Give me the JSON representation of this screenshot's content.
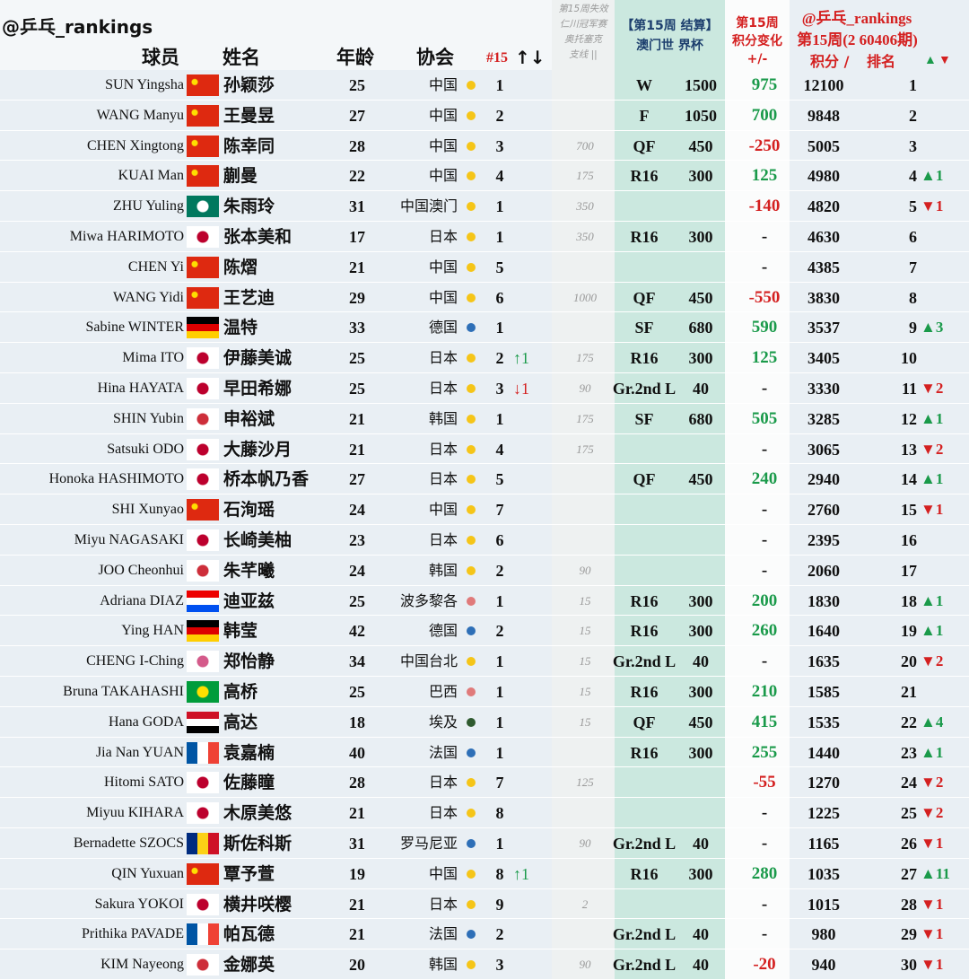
{
  "header": {
    "handle": "@乒乓_rankings",
    "player": "球员",
    "name": "姓名",
    "age": "年龄",
    "assoc": "协会",
    "week": "#15",
    "week_arrows": "↑↓",
    "dropped": [
      "第15周失效",
      "仁川冠军赛",
      "奥托塞克",
      "支线 ||"
    ],
    "event": [
      "【第15周 结算】",
      "澳门世 界杯"
    ],
    "change": [
      "第15周",
      "积分变化",
      "+/-"
    ],
    "handle2": "@乒乓_rankings",
    "points_title": "第15周(2 60406期)",
    "points": "积分 /",
    "rank": "排名",
    "rank_up": "▲",
    "rank_down": "▼"
  },
  "colors": {
    "up": "#1a9a4a",
    "down": "#d42020",
    "dot": {
      "中国": "#f5c518",
      "中国澳门": "#f5c518",
      "日本": "#f5c518",
      "韩国": "#f5c518",
      "中国台北": "#f5c518",
      "德国": "#2e6fb7",
      "法国": "#2e6fb7",
      "罗马尼亚": "#2e6fb7",
      "波多黎各": "#e07a7a",
      "巴西": "#e07a7a",
      "埃及": "#2f5a2f"
    }
  },
  "flags": {
    "中国": {
      "dir": "corner",
      "colors": [
        "#de2910",
        "#ffde00"
      ]
    },
    "中国澳门": {
      "dir": "disc",
      "colors": [
        "#00785e",
        "#ffffff"
      ]
    },
    "日本": {
      "dir": "disc",
      "colors": [
        "#ffffff",
        "#bc002d"
      ]
    },
    "韩国": {
      "dir": "disc",
      "colors": [
        "#ffffff",
        "#cd2e3a"
      ]
    },
    "中国台北": {
      "dir": "disc",
      "colors": [
        "#ffffff",
        "#d45a8a"
      ]
    },
    "德国": {
      "dir": "h",
      "colors": [
        "#000000",
        "#dd0000",
        "#ffce00"
      ]
    },
    "法国": {
      "dir": "v",
      "colors": [
        "#0055a4",
        "#ffffff",
        "#ef4135"
      ]
    },
    "罗马尼亚": {
      "dir": "v",
      "colors": [
        "#002b7f",
        "#fcd116",
        "#ce1126"
      ]
    },
    "波多黎各": {
      "dir": "h",
      "colors": [
        "#ed0000",
        "#ffffff",
        "#0050f0"
      ]
    },
    "巴西": {
      "dir": "disc",
      "colors": [
        "#009c3b",
        "#ffdf00"
      ]
    },
    "埃及": {
      "dir": "h",
      "colors": [
        "#ce1126",
        "#ffffff",
        "#000000"
      ]
    }
  },
  "rows": [
    {
      "en": "SUN Yingsha",
      "zh": "孙颖莎",
      "age": 25,
      "assoc": "中国",
      "rank15": 1,
      "stage": "W",
      "pts": 1500,
      "change": 975,
      "total": 12100,
      "rank": 1
    },
    {
      "en": "WANG Manyu",
      "zh": "王曼昱",
      "age": 27,
      "assoc": "中国",
      "rank15": 2,
      "stage": "F",
      "pts": 1050,
      "change": 700,
      "total": 9848,
      "rank": 2
    },
    {
      "en": "CHEN Xingtong",
      "zh": "陈幸同",
      "age": 28,
      "assoc": "中国",
      "rank15": 3,
      "dropped": 700,
      "stage": "QF",
      "pts": 450,
      "change": -250,
      "total": 5005,
      "rank": 3
    },
    {
      "en": "KUAI Man",
      "zh": "蒯曼",
      "age": 22,
      "assoc": "中国",
      "rank15": 4,
      "dropped": 175,
      "stage": "R16",
      "pts": 300,
      "change": 125,
      "total": 4980,
      "rank": 4,
      "rank_move": "▲1"
    },
    {
      "en": "ZHU Yuling",
      "zh": "朱雨玲",
      "age": 31,
      "assoc": "中国澳门",
      "rank15": 1,
      "dropped": 350,
      "change": -140,
      "total": 4820,
      "rank": 5,
      "rank_move": "▼1"
    },
    {
      "en": "Miwa HARIMOTO",
      "zh": "张本美和",
      "age": 17,
      "assoc": "日本",
      "rank15": 1,
      "dropped": 350,
      "stage": "R16",
      "pts": 300,
      "change": "-",
      "total": 4630,
      "rank": 6
    },
    {
      "en": "CHEN Yi",
      "zh": "陈熠",
      "age": 21,
      "assoc": "中国",
      "rank15": 5,
      "change": "-",
      "total": 4385,
      "rank": 7
    },
    {
      "en": "WANG Yidi",
      "zh": "王艺迪",
      "age": 29,
      "assoc": "中国",
      "rank15": 6,
      "dropped": 1000,
      "stage": "QF",
      "pts": 450,
      "change": -550,
      "total": 3830,
      "rank": 8
    },
    {
      "en": "Sabine WINTER",
      "zh": "温特",
      "age": 33,
      "assoc": "德国",
      "rank15": 1,
      "stage": "SF",
      "pts": 680,
      "change": 590,
      "total": 3537,
      "rank": 9,
      "rank_move": "▲3"
    },
    {
      "en": "Mima ITO",
      "zh": "伊藤美诚",
      "age": 25,
      "assoc": "日本",
      "rank15": 2,
      "move": "↑1",
      "dropped": 175,
      "stage": "R16",
      "pts": 300,
      "change": 125,
      "total": 3405,
      "rank": 10
    },
    {
      "en": "Hina HAYATA",
      "zh": "早田希娜",
      "age": 25,
      "assoc": "日本",
      "rank15": 3,
      "move": "↓1",
      "dropped": 90,
      "stage": "Gr.2nd L",
      "pts": 40,
      "change": "-",
      "total": 3330,
      "rank": 11,
      "rank_move": "▼2"
    },
    {
      "en": "SHIN Yubin",
      "zh": "申裕斌",
      "age": 21,
      "assoc": "韩国",
      "rank15": 1,
      "dropped": 175,
      "stage": "SF",
      "pts": 680,
      "change": 505,
      "total": 3285,
      "rank": 12,
      "rank_move": "▲1"
    },
    {
      "en": "Satsuki ODO",
      "zh": "大藤沙月",
      "age": 21,
      "assoc": "日本",
      "rank15": 4,
      "dropped": 175,
      "change": "-",
      "total": 3065,
      "rank": 13,
      "rank_move": "▼2"
    },
    {
      "en": "Honoka HASHIMOTO",
      "zh": "桥本帆乃香",
      "age": 27,
      "assoc": "日本",
      "rank15": 5,
      "stage": "QF",
      "pts": 450,
      "change": 240,
      "total": 2940,
      "rank": 14,
      "rank_move": "▲1"
    },
    {
      "en": "SHI Xunyao",
      "zh": "石洵瑶",
      "age": 24,
      "assoc": "中国",
      "rank15": 7,
      "change": "-",
      "total": 2760,
      "rank": 15,
      "rank_move": "▼1"
    },
    {
      "en": "Miyu NAGASAKI",
      "zh": "长崎美柚",
      "age": 23,
      "assoc": "日本",
      "rank15": 6,
      "change": "-",
      "total": 2395,
      "rank": 16
    },
    {
      "en": "JOO Cheonhui",
      "zh": "朱芊曦",
      "age": 24,
      "assoc": "韩国",
      "rank15": 2,
      "dropped": 90,
      "change": "-",
      "total": 2060,
      "rank": 17
    },
    {
      "en": "Adriana DIAZ",
      "zh": "迪亚兹",
      "age": 25,
      "assoc": "波多黎各",
      "rank15": 1,
      "dropped": 15,
      "stage": "R16",
      "pts": 300,
      "change": 200,
      "total": 1830,
      "rank": 18,
      "rank_move": "▲1"
    },
    {
      "en": "Ying HAN",
      "zh": "韩莹",
      "age": 42,
      "assoc": "德国",
      "rank15": 2,
      "dropped": 15,
      "stage": "R16",
      "pts": 300,
      "change": 260,
      "total": 1640,
      "rank": 19,
      "rank_move": "▲1"
    },
    {
      "en": "CHENG I-Ching",
      "zh": "郑怡静",
      "age": 34,
      "assoc": "中国台北",
      "rank15": 1,
      "dropped": 15,
      "stage": "Gr.2nd L",
      "pts": 40,
      "change": "-",
      "total": 1635,
      "rank": 20,
      "rank_move": "▼2"
    },
    {
      "en": "Bruna TAKAHASHI",
      "zh": "高桥",
      "age": 25,
      "assoc": "巴西",
      "rank15": 1,
      "dropped": 15,
      "stage": "R16",
      "pts": 300,
      "change": 210,
      "total": 1585,
      "rank": 21
    },
    {
      "en": "Hana GODA",
      "zh": "高达",
      "age": 18,
      "assoc": "埃及",
      "rank15": 1,
      "dropped": 15,
      "stage": "QF",
      "pts": 450,
      "change": 415,
      "total": 1535,
      "rank": 22,
      "rank_move": "▲4"
    },
    {
      "en": "Jia Nan YUAN",
      "zh": "袁嘉楠",
      "age": 40,
      "assoc": "法国",
      "rank15": 1,
      "stage": "R16",
      "pts": 300,
      "change": 255,
      "total": 1440,
      "rank": 23,
      "rank_move": "▲1"
    },
    {
      "en": "Hitomi SATO",
      "zh": "佐藤瞳",
      "age": 28,
      "assoc": "日本",
      "rank15": 7,
      "dropped": 125,
      "change": -55,
      "total": 1270,
      "rank": 24,
      "rank_move": "▼2"
    },
    {
      "en": "Miyuu KIHARA",
      "zh": "木原美悠",
      "age": 21,
      "assoc": "日本",
      "rank15": 8,
      "change": "-",
      "total": 1225,
      "rank": 25,
      "rank_move": "▼2"
    },
    {
      "en": "Bernadette SZOCS",
      "zh": "斯佐科斯",
      "age": 31,
      "assoc": "罗马尼亚",
      "rank15": 1,
      "dropped": 90,
      "stage": "Gr.2nd L",
      "pts": 40,
      "change": "-",
      "total": 1165,
      "rank": 26,
      "rank_move": "▼1"
    },
    {
      "en": "QIN Yuxuan",
      "zh": "覃予萱",
      "age": 19,
      "assoc": "中国",
      "rank15": 8,
      "move": "↑1",
      "stage": "R16",
      "pts": 300,
      "change": 280,
      "total": 1035,
      "rank": 27,
      "rank_move": "▲11"
    },
    {
      "en": "Sakura YOKOI",
      "zh": "横井咲樱",
      "age": 21,
      "assoc": "日本",
      "rank15": 9,
      "dropped": 2,
      "change": "-",
      "total": 1015,
      "rank": 28,
      "rank_move": "▼1"
    },
    {
      "en": "Prithika PAVADE",
      "zh": "帕瓦德",
      "age": 21,
      "assoc": "法国",
      "rank15": 2,
      "stage": "Gr.2nd L",
      "pts": 40,
      "change": "-",
      "total": 980,
      "rank": 29,
      "rank_move": "▼1"
    },
    {
      "en": "KIM Nayeong",
      "zh": "金娜英",
      "age": 20,
      "assoc": "韩国",
      "rank15": 3,
      "dropped": 90,
      "stage": "Gr.2nd L",
      "pts": 40,
      "change": -20,
      "total": 940,
      "rank": 30,
      "rank_move": "▼1"
    }
  ]
}
